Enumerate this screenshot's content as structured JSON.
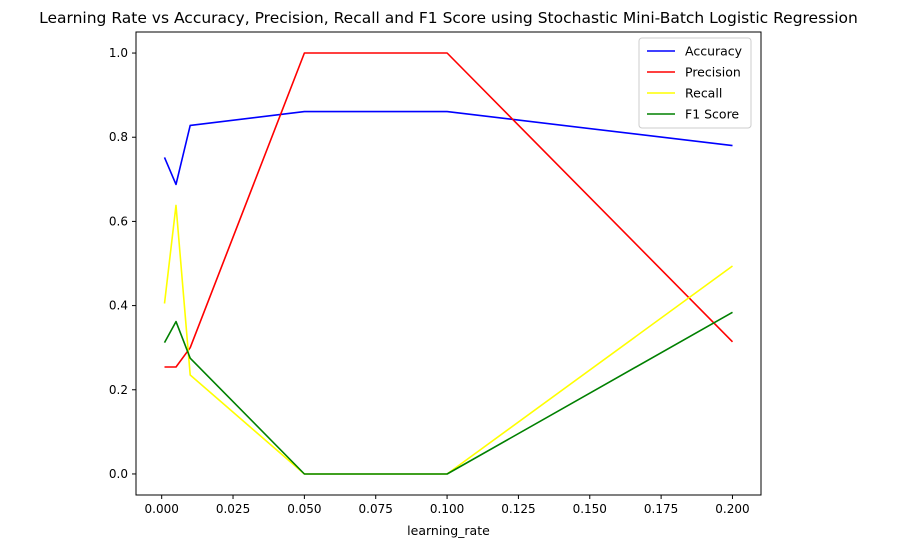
{
  "chart_data": {
    "type": "line",
    "title": "Learning Rate vs Accuracy, Precision, Recall and F1 Score using Stochastic Mini-Batch Logistic Regression",
    "xlabel": "learning_rate",
    "ylabel": "",
    "x": [
      0.001,
      0.005,
      0.01,
      0.05,
      0.1,
      0.2
    ],
    "series": [
      {
        "name": "Accuracy",
        "color": "#0000ff",
        "values": [
          0.752,
          0.688,
          0.828,
          0.861,
          0.861,
          0.78
        ]
      },
      {
        "name": "Precision",
        "color": "#ff0000",
        "values": [
          0.254,
          0.254,
          0.3,
          1.0,
          1.0,
          0.314
        ]
      },
      {
        "name": "Recall",
        "color": "#ffff00",
        "values": [
          0.405,
          0.638,
          0.235,
          0.0,
          0.0,
          0.494
        ]
      },
      {
        "name": "F1 Score",
        "color": "#008000",
        "values": [
          0.312,
          0.362,
          0.275,
          0.0,
          0.0,
          0.384
        ]
      }
    ],
    "xlim": [
      -0.009,
      0.21
    ],
    "ylim": [
      -0.05,
      1.05
    ],
    "xticks": [
      0.0,
      0.025,
      0.05,
      0.075,
      0.1,
      0.125,
      0.15,
      0.175,
      0.2
    ],
    "xtick_labels": [
      "0.000",
      "0.025",
      "0.050",
      "0.075",
      "0.100",
      "0.125",
      "0.150",
      "0.175",
      "0.200"
    ],
    "yticks": [
      0.0,
      0.2,
      0.4,
      0.6,
      0.8,
      1.0
    ],
    "ytick_labels": [
      "0.0",
      "0.2",
      "0.4",
      "0.6",
      "0.8",
      "1.0"
    ],
    "grid": false,
    "legend": "top-right"
  }
}
